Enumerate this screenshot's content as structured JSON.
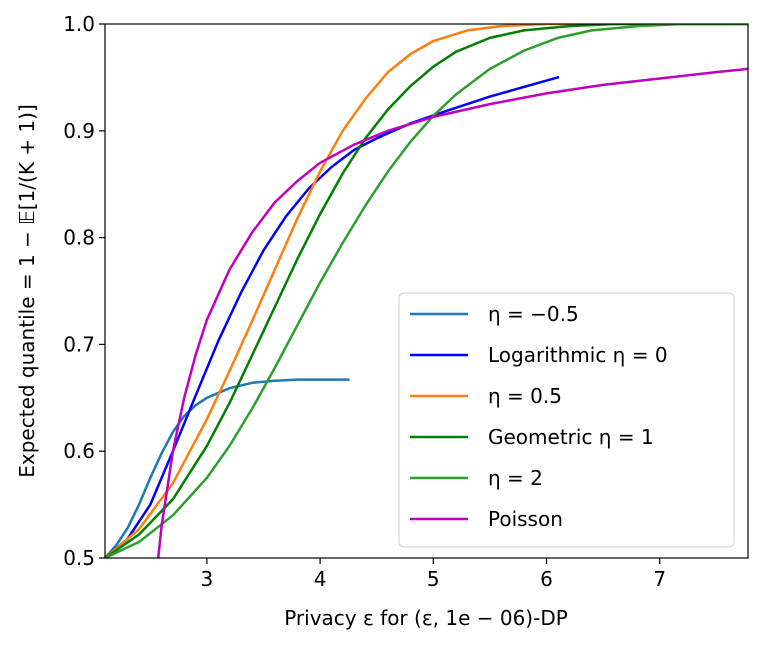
{
  "chart_data": {
    "type": "line",
    "title": "",
    "xlabel": "Privacy ε for (ε, 1e − 06)-DP",
    "ylabel": "Expected quantile = 1 − 𝔼[1/(K + 1)]",
    "xlim": [
      2.1,
      7.78
    ],
    "ylim": [
      0.5,
      1.0
    ],
    "x_ticks": [
      3,
      4,
      5,
      6,
      7
    ],
    "x_tick_labels": [
      "3",
      "4",
      "5",
      "6",
      "7"
    ],
    "y_ticks": [
      0.5,
      0.6,
      0.7,
      0.8,
      0.9,
      1.0
    ],
    "y_tick_labels": [
      "0.5",
      "0.6",
      "0.7",
      "0.8",
      "0.9",
      "1.0"
    ],
    "grid": false,
    "legend_position": "lower-right",
    "series": [
      {
        "name": "η = −0.5",
        "color": "#1f77b4",
        "x": [
          2.1,
          2.2,
          2.3,
          2.4,
          2.5,
          2.6,
          2.7,
          2.8,
          2.9,
          3.0,
          3.2,
          3.4,
          3.6,
          3.8,
          4.0,
          4.25
        ],
        "y": [
          0.5,
          0.512,
          0.528,
          0.55,
          0.575,
          0.598,
          0.618,
          0.633,
          0.643,
          0.65,
          0.659,
          0.664,
          0.666,
          0.667,
          0.667,
          0.667
        ]
      },
      {
        "name": "Logarithmic η = 0",
        "color": "#0000ff",
        "x": [
          2.1,
          2.3,
          2.5,
          2.7,
          2.9,
          3.1,
          3.3,
          3.5,
          3.7,
          3.9,
          4.1,
          4.3,
          4.5,
          4.8,
          5.1,
          5.5,
          6.1
        ],
        "y": [
          0.5,
          0.518,
          0.55,
          0.6,
          0.652,
          0.703,
          0.748,
          0.788,
          0.82,
          0.846,
          0.866,
          0.882,
          0.893,
          0.907,
          0.918,
          0.932,
          0.95
        ]
      },
      {
        "name": "η = 0.5",
        "color": "#ff7f0e",
        "x": [
          2.1,
          2.4,
          2.7,
          3.0,
          3.2,
          3.4,
          3.6,
          3.8,
          4.0,
          4.2,
          4.4,
          4.6,
          4.8,
          5.0,
          5.3,
          5.6,
          6.0,
          6.5,
          7.0,
          7.78
        ],
        "y": [
          0.5,
          0.527,
          0.57,
          0.63,
          0.675,
          0.722,
          0.77,
          0.818,
          0.862,
          0.9,
          0.93,
          0.955,
          0.972,
          0.984,
          0.994,
          0.998,
          1.0,
          1.0,
          1.0,
          1.0
        ]
      },
      {
        "name": "Geometric η = 1",
        "color": "#008000",
        "x": [
          2.1,
          2.4,
          2.7,
          3.0,
          3.2,
          3.4,
          3.6,
          3.8,
          4.0,
          4.2,
          4.4,
          4.6,
          4.8,
          5.0,
          5.2,
          5.5,
          5.8,
          6.2,
          6.6,
          7.0,
          7.78
        ],
        "y": [
          0.5,
          0.522,
          0.555,
          0.605,
          0.645,
          0.69,
          0.735,
          0.78,
          0.822,
          0.86,
          0.893,
          0.92,
          0.942,
          0.96,
          0.974,
          0.987,
          0.994,
          0.998,
          1.0,
          1.0,
          1.0
        ]
      },
      {
        "name": "η = 2",
        "color": "#2ca02c",
        "x": [
          2.1,
          2.4,
          2.7,
          3.0,
          3.2,
          3.4,
          3.6,
          3.8,
          4.0,
          4.2,
          4.4,
          4.6,
          4.8,
          5.0,
          5.2,
          5.5,
          5.8,
          6.1,
          6.4,
          6.8,
          7.2,
          7.78
        ],
        "y": [
          0.5,
          0.515,
          0.54,
          0.575,
          0.605,
          0.64,
          0.678,
          0.718,
          0.758,
          0.795,
          0.83,
          0.862,
          0.89,
          0.914,
          0.934,
          0.958,
          0.975,
          0.987,
          0.994,
          0.998,
          1.0,
          1.0
        ]
      },
      {
        "name": "Poisson",
        "color": "#bf00bf",
        "x": [
          2.57,
          2.6,
          2.65,
          2.7,
          2.8,
          2.9,
          3.0,
          3.2,
          3.4,
          3.6,
          3.8,
          4.0,
          4.3,
          4.6,
          5.0,
          5.5,
          6.0,
          6.5,
          7.0,
          7.5,
          7.78
        ],
        "y": [
          0.5,
          0.53,
          0.565,
          0.6,
          0.65,
          0.69,
          0.723,
          0.77,
          0.805,
          0.833,
          0.853,
          0.87,
          0.887,
          0.9,
          0.913,
          0.925,
          0.935,
          0.943,
          0.949,
          0.955,
          0.958
        ]
      }
    ]
  }
}
